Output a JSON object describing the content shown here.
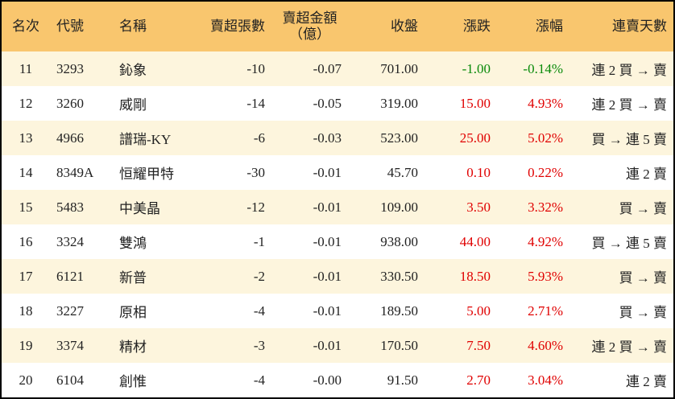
{
  "table": {
    "header": [
      "名次",
      "代號",
      "名稱",
      "賣超張數",
      [
        "賣超金額",
        "（億）"
      ],
      "收盤",
      "漲跌",
      "漲幅",
      "連賣天數"
    ],
    "rows": [
      [
        "11",
        "3293",
        "鈊象",
        "-10",
        "-0.07",
        "701.00",
        "-1.00",
        "-0.14%",
        "連 2 買 → 賣"
      ],
      [
        "12",
        "3260",
        "威剛",
        "-14",
        "-0.05",
        "319.00",
        "15.00",
        "4.93%",
        "連 2 買 → 賣"
      ],
      [
        "13",
        "4966",
        "譜瑞-KY",
        "-6",
        "-0.03",
        "523.00",
        "25.00",
        "5.02%",
        "買 → 連 5 賣"
      ],
      [
        "14",
        "8349A",
        "恒耀甲特",
        "-30",
        "-0.01",
        "45.70",
        "0.10",
        "0.22%",
        "連 2 賣"
      ],
      [
        "15",
        "5483",
        "中美晶",
        "-12",
        "-0.01",
        "109.00",
        "3.50",
        "3.32%",
        "買 → 賣"
      ],
      [
        "16",
        "3324",
        "雙鴻",
        "-1",
        "-0.01",
        "938.00",
        "44.00",
        "4.92%",
        "買 → 連 5 賣"
      ],
      [
        "17",
        "6121",
        "新普",
        "-2",
        "-0.01",
        "330.50",
        "18.50",
        "5.93%",
        "買 → 賣"
      ],
      [
        "18",
        "3227",
        "原相",
        "-4",
        "-0.01",
        "189.50",
        "5.00",
        "2.71%",
        "買 → 賣"
      ],
      [
        "19",
        "3374",
        "精材",
        "-3",
        "-0.01",
        "170.50",
        "7.50",
        "4.60%",
        "連 2 買 → 賣"
      ],
      [
        "20",
        "6104",
        "創惟",
        "-4",
        "-0.00",
        "91.50",
        "2.70",
        "3.04%",
        "連 2 賣"
      ]
    ]
  }
}
